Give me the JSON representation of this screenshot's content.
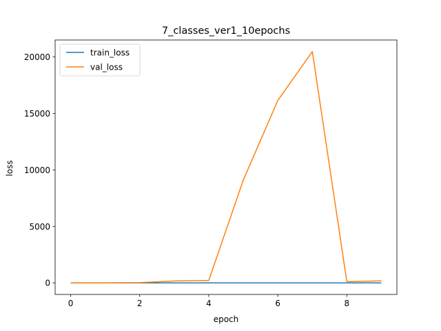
{
  "chart_data": {
    "type": "line",
    "title": "7_classes_ver1_10epochs",
    "xlabel": "epoch",
    "ylabel": "loss",
    "xlim": [
      -0.45,
      9.45
    ],
    "ylim": [
      -1024,
      21504
    ],
    "xticks": [
      0,
      2,
      4,
      6,
      8
    ],
    "yticks": [
      0,
      5000,
      10000,
      15000,
      20000
    ],
    "grid": false,
    "legend_position": "top-left",
    "x": [
      0,
      1,
      2,
      3,
      4,
      5,
      6,
      7,
      8,
      9
    ],
    "series": [
      {
        "name": "train_loss",
        "color": "#1f77b4",
        "values": [
          2,
          1.5,
          1.5,
          1.4,
          1.4,
          1.3,
          1.3,
          1.3,
          1.3,
          1.3
        ]
      },
      {
        "name": "val_loss",
        "color": "#ff7f0e",
        "values": [
          5,
          5,
          20,
          170,
          210,
          9100,
          16150,
          20480,
          110,
          180
        ]
      }
    ]
  }
}
